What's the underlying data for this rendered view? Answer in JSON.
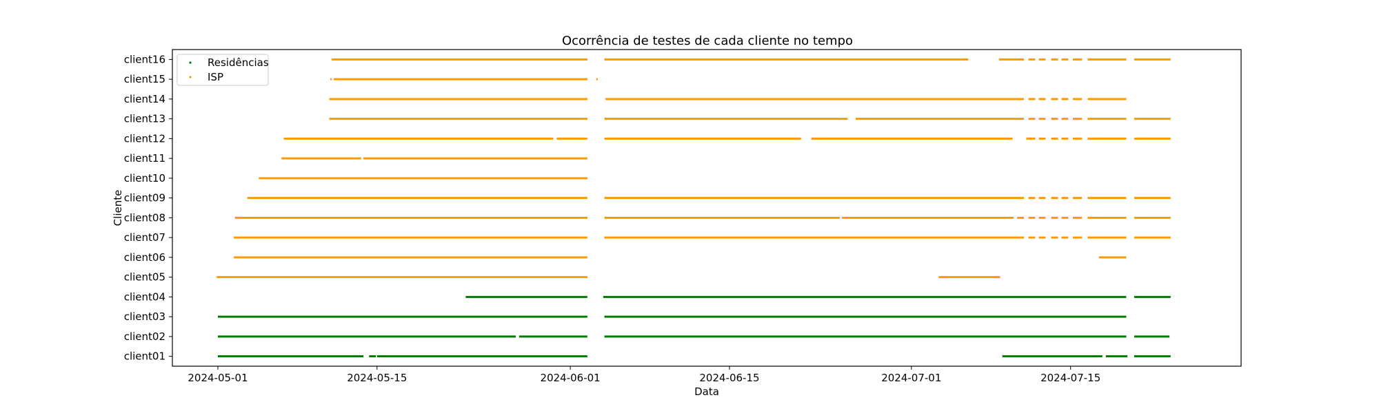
{
  "chart_data": {
    "type": "scatter",
    "title": "Ocorrência de testes de cada cliente no tempo",
    "xlabel": "Data",
    "ylabel": "Cliente",
    "xlim": [
      "2024-04-27",
      "2024-07-30"
    ],
    "x_ticks": [
      "2024-05-01",
      "2024-05-15",
      "2024-06-01",
      "2024-06-15",
      "2024-07-01",
      "2024-07-15"
    ],
    "categories": [
      "client01",
      "client02",
      "client03",
      "client04",
      "client05",
      "client06",
      "client07",
      "client08",
      "client09",
      "client10",
      "client11",
      "client12",
      "client13",
      "client14",
      "client15",
      "client16"
    ],
    "legend_position": "top-left",
    "series": [
      {
        "name": "Residências",
        "color": "#007a00",
        "clients": [
          {
            "client": "client01",
            "ranges": [
              [
                "2024-05-01",
                "2024-05-13.8"
              ],
              [
                "2024-05-14.3",
                "2024-05-14.9"
              ],
              [
                "2024-05-15.0",
                "2024-06-02.5"
              ],
              [
                "2024-07-09.0",
                "2024-07-17.8"
              ],
              [
                "2024-07-18.1",
                "2024-07-20.0"
              ],
              [
                "2024-07-20.6",
                "2024-07-23.8"
              ]
            ]
          },
          {
            "client": "client02",
            "ranges": [
              [
                "2024-05-01",
                "2024-05-27.2"
              ],
              [
                "2024-05-27.5",
                "2024-06-02.5"
              ],
              [
                "2024-06-04.0",
                "2024-07-19.9"
              ],
              [
                "2024-07-20.6",
                "2024-07-23.7"
              ]
            ]
          },
          {
            "client": "client03",
            "ranges": [
              [
                "2024-05-01",
                "2024-06-02.5"
              ],
              [
                "2024-06-04.0",
                "2024-07-19.9"
              ]
            ]
          },
          {
            "client": "client04",
            "ranges": [
              [
                "2024-05-22.8",
                "2024-06-02.5"
              ],
              [
                "2024-06-03.9",
                "2024-07-19.9"
              ],
              [
                "2024-07-20.6",
                "2024-07-23.8"
              ]
            ]
          }
        ]
      },
      {
        "name": "ISP",
        "color": "#ff9900",
        "clients": [
          {
            "client": "client05",
            "ranges": [
              [
                "2024-04-30.9",
                "2024-06-02.5"
              ],
              [
                "2024-07-03.4",
                "2024-07-08.8"
              ]
            ]
          },
          {
            "client": "client06",
            "ranges": [
              [
                "2024-05-02.4",
                "2024-06-02.5"
              ],
              [
                "2024-07-17.5",
                "2024-07-19.9"
              ]
            ]
          },
          {
            "client": "client07",
            "ranges": [
              [
                "2024-05-02.4",
                "2024-06-02.5"
              ],
              [
                "2024-06-04.0",
                "2024-07-10.9"
              ],
              [
                "2024-07-11.3",
                "2024-07-11.9"
              ],
              [
                "2024-07-12.2",
                "2024-07-12.8"
              ],
              [
                "2024-07-13.3",
                "2024-07-13.9"
              ],
              [
                "2024-07-14.2",
                "2024-07-14.8"
              ],
              [
                "2024-07-15.2",
                "2024-07-16.0"
              ],
              [
                "2024-07-16.5",
                "2024-07-19.9"
              ],
              [
                "2024-07-20.6",
                "2024-07-23.8"
              ]
            ]
          },
          {
            "client": "client08",
            "ranges": [
              [
                "2024-05-02.5",
                "2024-06-02.5"
              ],
              [
                "2024-06-04.0",
                "2024-06-24.7"
              ],
              [
                "2024-06-24.9",
                "2024-07-10.0"
              ],
              [
                "2024-07-10.3",
                "2024-07-10.9"
              ],
              [
                "2024-07-11.3",
                "2024-07-11.9"
              ],
              [
                "2024-07-12.2",
                "2024-07-12.8"
              ],
              [
                "2024-07-13.3",
                "2024-07-13.9"
              ],
              [
                "2024-07-14.2",
                "2024-07-14.8"
              ],
              [
                "2024-07-15.2",
                "2024-07-16.0"
              ],
              [
                "2024-07-16.5",
                "2024-07-19.9"
              ],
              [
                "2024-07-20.6",
                "2024-07-23.8"
              ]
            ]
          },
          {
            "client": "client09",
            "ranges": [
              [
                "2024-05-03.6",
                "2024-06-02.5"
              ],
              [
                "2024-06-04.0",
                "2024-07-10.9"
              ],
              [
                "2024-07-11.3",
                "2024-07-11.9"
              ],
              [
                "2024-07-12.2",
                "2024-07-12.8"
              ],
              [
                "2024-07-13.3",
                "2024-07-13.9"
              ],
              [
                "2024-07-14.2",
                "2024-07-14.8"
              ],
              [
                "2024-07-15.2",
                "2024-07-16.0"
              ],
              [
                "2024-07-16.5",
                "2024-07-19.9"
              ],
              [
                "2024-07-20.6",
                "2024-07-23.8"
              ]
            ]
          },
          {
            "client": "client10",
            "ranges": [
              [
                "2024-05-04.6",
                "2024-06-02.5"
              ]
            ]
          },
          {
            "client": "client11",
            "ranges": [
              [
                "2024-05-06.6",
                "2024-05-13.6"
              ],
              [
                "2024-05-13.8",
                "2024-06-02.5"
              ]
            ]
          },
          {
            "client": "client12",
            "ranges": [
              [
                "2024-05-06.8",
                "2024-05-30.5"
              ],
              [
                "2024-05-30.8",
                "2024-06-02.5"
              ],
              [
                "2024-06-04.0",
                "2024-06-21.3"
              ],
              [
                "2024-06-22.2",
                "2024-07-09.9"
              ],
              [
                "2024-07-11.1",
                "2024-07-11.9"
              ],
              [
                "2024-07-12.2",
                "2024-07-12.8"
              ],
              [
                "2024-07-13.3",
                "2024-07-13.9"
              ],
              [
                "2024-07-14.2",
                "2024-07-14.8"
              ],
              [
                "2024-07-15.2",
                "2024-07-16.0"
              ],
              [
                "2024-07-16.5",
                "2024-07-19.9"
              ],
              [
                "2024-07-20.6",
                "2024-07-23.8"
              ]
            ]
          },
          {
            "client": "client13",
            "ranges": [
              [
                "2024-05-10.8",
                "2024-06-02.5"
              ],
              [
                "2024-06-04.0",
                "2024-06-25.4"
              ],
              [
                "2024-06-26.1",
                "2024-07-10.9"
              ],
              [
                "2024-07-11.3",
                "2024-07-11.9"
              ],
              [
                "2024-07-12.2",
                "2024-07-12.8"
              ],
              [
                "2024-07-13.3",
                "2024-07-13.9"
              ],
              [
                "2024-07-14.2",
                "2024-07-14.8"
              ],
              [
                "2024-07-15.2",
                "2024-07-16.0"
              ],
              [
                "2024-07-16.5",
                "2024-07-19.9"
              ],
              [
                "2024-07-20.6",
                "2024-07-23.8"
              ]
            ]
          },
          {
            "client": "client14",
            "ranges": [
              [
                "2024-05-10.8",
                "2024-06-02.5"
              ],
              [
                "2024-06-04.1",
                "2024-07-10.9"
              ],
              [
                "2024-07-11.3",
                "2024-07-11.9"
              ],
              [
                "2024-07-12.2",
                "2024-07-12.8"
              ],
              [
                "2024-07-13.3",
                "2024-07-13.9"
              ],
              [
                "2024-07-14.2",
                "2024-07-14.8"
              ],
              [
                "2024-07-15.2",
                "2024-07-16.0"
              ],
              [
                "2024-07-16.5",
                "2024-07-19.9"
              ]
            ]
          },
          {
            "client": "client15",
            "ranges": [
              [
                "2024-05-10.9",
                "2024-05-11.0"
              ],
              [
                "2024-05-11.2",
                "2024-06-02.5"
              ],
              [
                "2024-06-03.3",
                "2024-06-03.4"
              ]
            ]
          },
          {
            "client": "client16",
            "ranges": [
              [
                "2024-05-11.0",
                "2024-06-02.5"
              ],
              [
                "2024-06-04.0",
                "2024-07-06.0"
              ],
              [
                "2024-07-08.7",
                "2024-07-10.9"
              ],
              [
                "2024-07-11.3",
                "2024-07-11.9"
              ],
              [
                "2024-07-12.2",
                "2024-07-12.8"
              ],
              [
                "2024-07-13.3",
                "2024-07-13.9"
              ],
              [
                "2024-07-14.2",
                "2024-07-14.8"
              ],
              [
                "2024-07-15.2",
                "2024-07-16.0"
              ],
              [
                "2024-07-16.5",
                "2024-07-19.9"
              ],
              [
                "2024-07-20.6",
                "2024-07-23.8"
              ]
            ]
          }
        ]
      }
    ]
  }
}
